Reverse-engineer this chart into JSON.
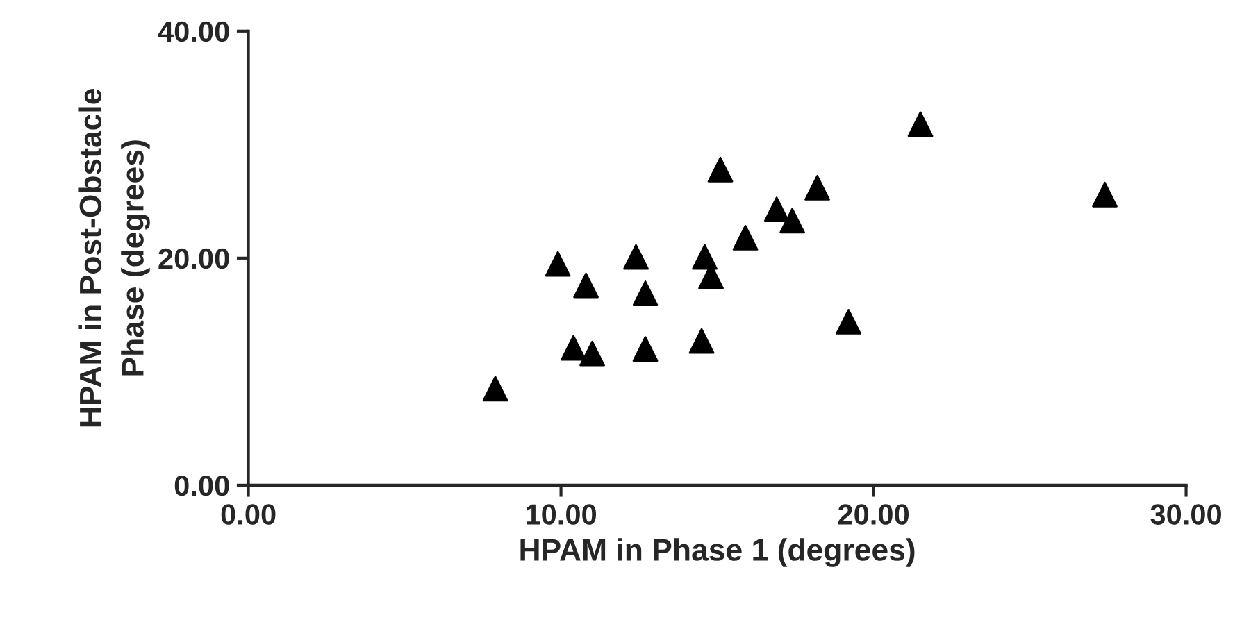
{
  "chart_data": {
    "type": "scatter",
    "xlabel": "HPAM in Phase 1 (degrees)",
    "ylabel": "HPAM in Post-Obstacle\nPhase (degrees)",
    "x": [
      7.9,
      9.9,
      10.8,
      10.4,
      11.0,
      12.4,
      12.7,
      12.7,
      14.5,
      14.6,
      14.8,
      15.1,
      15.9,
      16.9,
      17.4,
      18.2,
      19.2,
      21.5,
      27.4
    ],
    "series": [
      {
        "color": "#000000",
        "values": [
          8.5,
          19.5,
          17.6,
          12.1,
          11.6,
          20.1,
          16.9,
          12.0,
          12.7,
          20.1,
          18.4,
          27.8,
          21.8,
          24.3,
          23.3,
          26.2,
          14.4,
          31.8,
          25.6
        ]
      }
    ],
    "marker": "triangle",
    "grid": false,
    "legend": false,
    "xlim": [
      0,
      30
    ],
    "xticks": [
      {
        "value": 0,
        "label": "0.00"
      },
      {
        "value": 10,
        "label": "10.00"
      },
      {
        "value": 20,
        "label": "20.00"
      },
      {
        "value": 30,
        "label": "30.00"
      }
    ],
    "ylim": [
      0,
      40
    ],
    "yticks": [
      {
        "value": 0,
        "label": "0.00"
      },
      {
        "value": 20,
        "label": "20.00"
      },
      {
        "value": 40,
        "label": "40.00"
      }
    ]
  }
}
